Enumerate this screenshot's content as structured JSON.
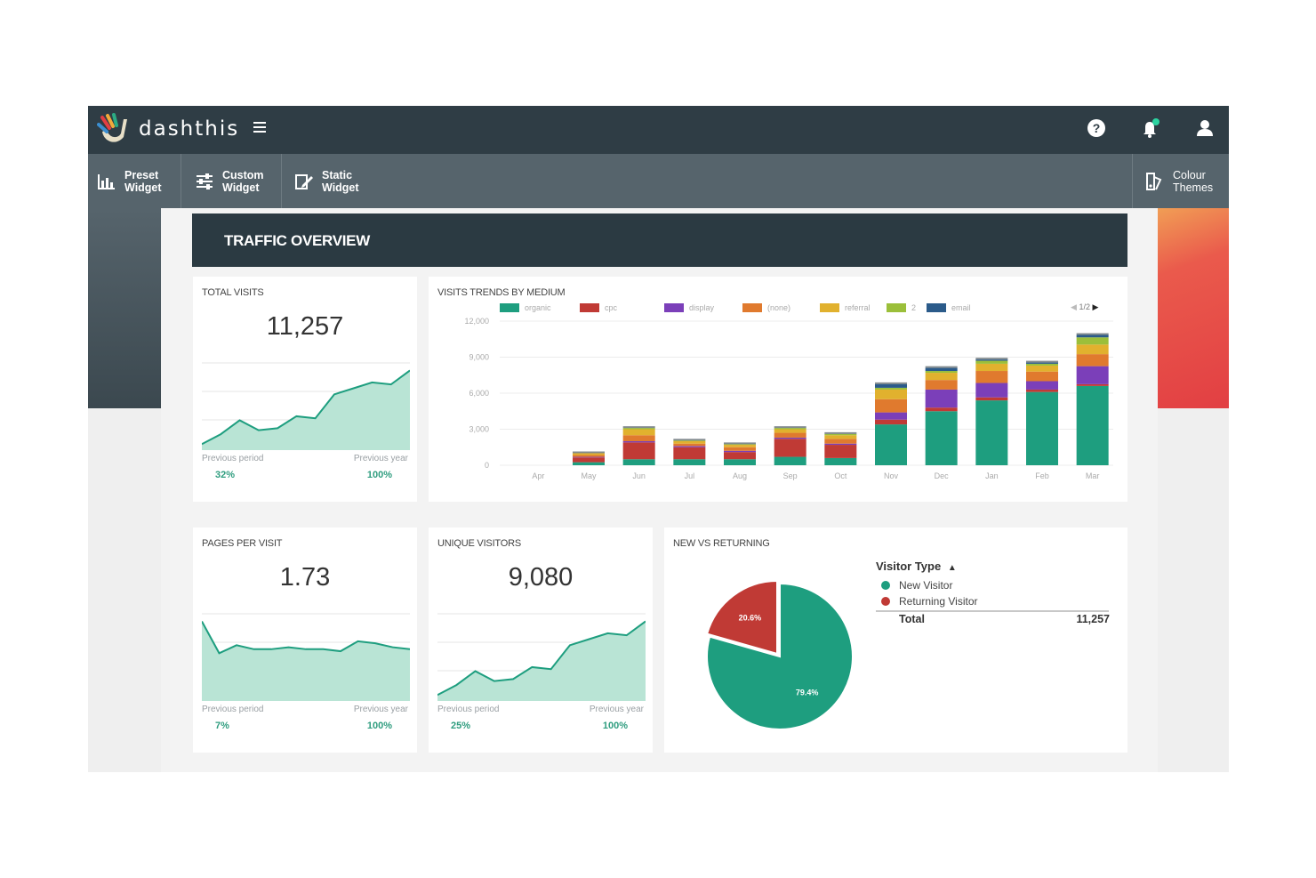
{
  "app": {
    "brand": "dashthis"
  },
  "colors": {
    "teal": "#1e9e7f",
    "dark": "#2f3d45",
    "red": "#c03a35"
  },
  "icons": {
    "topbar": [
      "help-icon",
      "notification-bell-icon",
      "user-icon"
    ],
    "toolbar": [
      "bar-chart-icon",
      "sliders-icon",
      "static-widget-icon",
      "colour-themes-icon"
    ]
  },
  "toolbar": {
    "preset": [
      "Preset",
      "Widget"
    ],
    "custom": [
      "Custom",
      "Widget"
    ],
    "static": [
      "Static",
      "Widget"
    ],
    "themes": [
      "Colour",
      "Themes"
    ]
  },
  "dashboard": {
    "title": "TRAFFIC OVERVIEW"
  },
  "total_visits": {
    "title": "TOTAL VISITS",
    "value": "11,257",
    "prev_period_label": "Previous period",
    "prev_year_label": "Previous year",
    "prev_period": "32%",
    "prev_year": "100%",
    "trend": [
      3,
      8,
      15,
      10,
      11,
      17,
      16,
      28,
      31,
      34,
      33,
      40
    ]
  },
  "pages_per_visit": {
    "title": "PAGES PER VISIT",
    "value": "1.73",
    "prev_period_label": "Previous period",
    "prev_year_label": "Previous year",
    "prev_period": "7%",
    "prev_year": "100%",
    "trend": [
      2,
      1.2,
      1.4,
      1.3,
      1.3,
      1.35,
      1.3,
      1.3,
      1.25,
      1.5,
      1.45,
      1.35,
      1.3
    ]
  },
  "unique_visitors": {
    "title": "UNIQUE VISITORS",
    "value": "9,080",
    "prev_period_label": "Previous period",
    "prev_year_label": "Previous year",
    "prev_period": "25%",
    "prev_year": "100%",
    "trend": [
      3,
      8,
      15,
      10,
      11,
      17,
      16,
      28,
      31,
      34,
      33,
      40
    ]
  },
  "visits_trends": {
    "title": "VISITS TRENDS BY MEDIUM",
    "pager": "1/2"
  },
  "chart_data": [
    {
      "type": "bar",
      "stacked": true,
      "title": "VISITS TRENDS BY MEDIUM",
      "categories": [
        "Apr",
        "May",
        "Jun",
        "Jul",
        "Aug",
        "Sep",
        "Oct",
        "Nov",
        "Dec",
        "Jan",
        "Feb",
        "Mar"
      ],
      "ylim": [
        0,
        12000
      ],
      "yticks": [
        "0",
        "3,000",
        "6,000",
        "9,000",
        "12,000"
      ],
      "grid": true,
      "legend": "top",
      "series": [
        {
          "name": "organic",
          "color": "#1e9e7f",
          "values": [
            0,
            250,
            500,
            500,
            500,
            700,
            600,
            3400,
            4500,
            5400,
            6100,
            6600
          ]
        },
        {
          "name": "cpc",
          "color": "#c03a35",
          "values": [
            0,
            400,
            1400,
            1000,
            600,
            1500,
            1100,
            400,
            300,
            250,
            200,
            150
          ]
        },
        {
          "name": "display",
          "color": "#7b3fb9",
          "values": [
            0,
            50,
            100,
            100,
            100,
            100,
            100,
            600,
            1500,
            1200,
            700,
            1500
          ]
        },
        {
          "name": "(none)",
          "color": "#e07a2e",
          "values": [
            0,
            150,
            500,
            200,
            300,
            400,
            400,
            1100,
            800,
            1000,
            800,
            1000
          ]
        },
        {
          "name": "referral",
          "color": "#e1b12e",
          "values": [
            0,
            150,
            500,
            200,
            200,
            300,
            300,
            800,
            600,
            600,
            500,
            800
          ]
        },
        {
          "name": "2",
          "color": "#9bbf3a",
          "values": [
            0,
            0,
            100,
            50,
            50,
            100,
            100,
            150,
            150,
            250,
            150,
            600
          ]
        },
        {
          "name": "email",
          "color": "#2b5b8a",
          "values": [
            0,
            0,
            0,
            0,
            0,
            0,
            0,
            300,
            250,
            100,
            100,
            200
          ]
        }
      ]
    },
    {
      "type": "pie",
      "title": "NEW VS RETURNING",
      "legend_title": "Visitor Type",
      "slices": [
        {
          "name": "New Visitor",
          "value": 79.4,
          "label": "79.4%",
          "color": "#1e9e7f"
        },
        {
          "name": "Returning Visitor",
          "value": 20.6,
          "label": "20.6%",
          "color": "#c03a35"
        }
      ],
      "total_label": "Total",
      "total_value": "11,257"
    }
  ]
}
